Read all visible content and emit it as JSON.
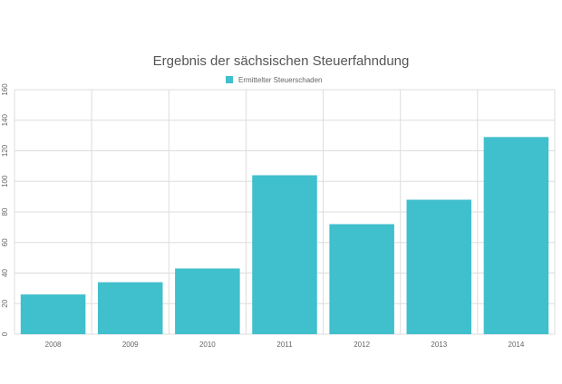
{
  "chart_data": {
    "type": "bar",
    "title": "Ergebnis der sächsischen Steuerfahndung",
    "series": [
      {
        "name": "Ermittelter Steuerschaden",
        "color": "#40bfcc",
        "values": [
          26,
          34,
          43,
          104,
          72,
          88,
          129
        ]
      }
    ],
    "categories": [
      "2008",
      "2009",
      "2010",
      "2011",
      "2012",
      "2013",
      "2014"
    ],
    "ylim": [
      0,
      160
    ],
    "yticks": [
      0,
      20,
      40,
      60,
      80,
      100,
      120,
      140,
      160
    ],
    "grid": true
  }
}
